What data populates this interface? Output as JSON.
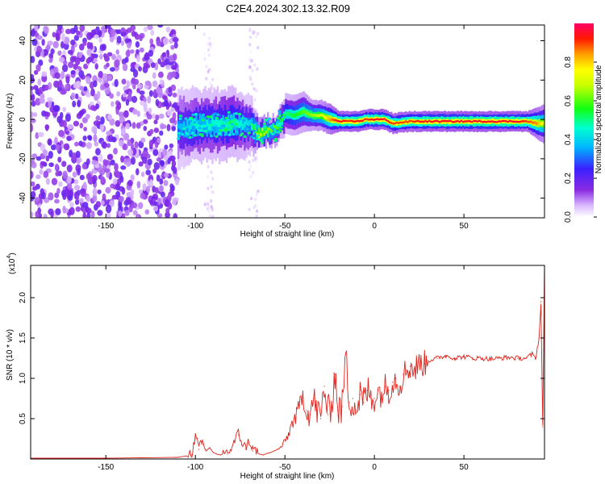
{
  "figure": {
    "title": "C2E4.2024.302.13.32.R09"
  },
  "colorbar": {
    "label": "Normalized spectral amplitude",
    "ticks": [
      0.0,
      0.2,
      0.4,
      0.6,
      0.8
    ],
    "tick_labels": [
      "0.0",
      "0.2",
      "0.4",
      "0.6",
      "0.8"
    ],
    "range": [
      0,
      1
    ]
  },
  "chart_data": [
    {
      "type": "heatmap",
      "title": "",
      "xlabel": "Height of straight line (km)",
      "ylabel": "Frequency (Hz)",
      "xlim": [
        -192,
        95
      ],
      "ylim": [
        -50,
        48
      ],
      "xticks": [
        -150,
        -100,
        -50,
        0,
        50
      ],
      "xtick_labels": [
        "-150",
        "-100",
        "-50",
        "0",
        "50"
      ],
      "yticks": [
        -40,
        -20,
        0,
        20,
        40
      ],
      "ytick_labels": [
        "-40",
        "-20",
        "0",
        "20",
        "40"
      ],
      "regions": [
        {
          "x": [
            -192,
            -110
          ],
          "freq": [
            -50,
            48
          ],
          "amplitude": [
            0.05,
            0.2
          ],
          "pattern": "scattered-noise"
        },
        {
          "x": [
            -95,
            -90
          ],
          "freq": [
            -50,
            48
          ],
          "amplitude": [
            0.0,
            0.08
          ],
          "pattern": "faint-columns"
        },
        {
          "x": [
            -70,
            -65
          ],
          "freq": [
            -50,
            48
          ],
          "amplitude": [
            0.0,
            0.08
          ],
          "pattern": "faint-columns"
        }
      ],
      "ridge": {
        "x": [
          -110,
          -100,
          -90,
          -80,
          -70,
          -65,
          -60,
          -55,
          -50,
          -45,
          -40,
          -35,
          -30,
          -25,
          -20,
          -15,
          -10,
          -5,
          0,
          5,
          10,
          20,
          30,
          40,
          50,
          60,
          70,
          80,
          85,
          90,
          95
        ],
        "freq": [
          -4,
          -3,
          -3,
          -2,
          -3,
          -7,
          -6,
          -5,
          3,
          2,
          4,
          2,
          2,
          0,
          -1,
          -1,
          -1,
          0,
          0,
          0,
          -2,
          -1,
          -1,
          -1,
          -1,
          -1,
          -1,
          -1,
          -1,
          -2,
          -2
        ],
        "amplitude": [
          0.35,
          0.45,
          0.45,
          0.5,
          0.4,
          0.75,
          0.65,
          0.6,
          0.5,
          0.55,
          0.6,
          0.65,
          0.7,
          0.85,
          0.95,
          0.9,
          0.95,
          0.9,
          0.95,
          0.95,
          0.9,
          0.9,
          0.95,
          0.95,
          0.95,
          0.95,
          0.95,
          0.95,
          0.9,
          0.85,
          0.7
        ],
        "halfwidth": [
          8,
          7,
          7,
          7,
          6,
          3,
          3,
          3,
          4,
          4,
          4,
          3,
          3,
          3,
          2,
          2,
          2,
          2,
          2,
          2,
          2,
          2,
          2,
          2,
          2,
          2,
          2,
          2,
          2,
          3,
          4
        ]
      }
    },
    {
      "type": "line",
      "title": "",
      "xlabel": "Height of straight line (km)",
      "ylabel": "SNR (10 * v/v)",
      "y_multiplier": "(x10",
      "y_multiplier_exp": "4",
      "xlim": [
        -192,
        95
      ],
      "ylim": [
        0,
        2.4
      ],
      "xticks": [
        -150,
        -100,
        -50,
        0,
        50
      ],
      "xtick_labels": [
        "-150",
        "-100",
        "-50",
        "0",
        "50"
      ],
      "yticks": [
        0.5,
        1.0,
        1.5,
        2.0
      ],
      "ytick_labels": [
        "0.5",
        "1.0",
        "1.5",
        "2.0"
      ],
      "series": [
        {
          "color": "#e0231c",
          "x": [
            -192,
            -150,
            -110,
            -102,
            -100,
            -98,
            -96,
            -94,
            -92,
            -90,
            -88,
            -86,
            -84,
            -82,
            -80,
            -78,
            -76,
            -74,
            -72,
            -70,
            -68,
            -66,
            -64,
            -62,
            -60,
            -58,
            -56,
            -54,
            -52,
            -50,
            -48,
            -46,
            -44,
            -42,
            -40,
            -38,
            -36,
            -34,
            -32,
            -30,
            -28,
            -26,
            -24,
            -22,
            -20,
            -18,
            -16,
            -14,
            -12,
            -10,
            -8,
            -6,
            -4,
            -2,
            0,
            2,
            4,
            6,
            8,
            10,
            12,
            14,
            16,
            18,
            20,
            22,
            24,
            26,
            28,
            30,
            35,
            40,
            45,
            50,
            55,
            60,
            65,
            70,
            75,
            80,
            85,
            88,
            90,
            92,
            93,
            94,
            95
          ],
          "values": [
            0.01,
            0.01,
            0.02,
            0.05,
            0.25,
            0.12,
            0.18,
            0.1,
            0.14,
            0.08,
            0.06,
            0.05,
            0.07,
            0.06,
            0.1,
            0.2,
            0.3,
            0.18,
            0.12,
            0.2,
            0.1,
            0.08,
            0.06,
            0.05,
            0.07,
            0.08,
            0.1,
            0.12,
            0.15,
            0.22,
            0.3,
            0.45,
            0.5,
            0.65,
            0.8,
            0.6,
            0.55,
            0.75,
            0.6,
            0.5,
            0.9,
            0.55,
            0.7,
            1.05,
            0.6,
            0.65,
            1.3,
            0.7,
            0.75,
            0.6,
            0.8,
            0.7,
            0.85,
            0.75,
            0.75,
            0.85,
            0.8,
            0.9,
            0.85,
            0.95,
            1.0,
            0.9,
            1.05,
            1.1,
            1.15,
            1.1,
            1.15,
            1.2,
            1.18,
            1.22,
            1.25,
            1.28,
            1.25,
            1.27,
            1.25,
            1.25,
            1.24,
            1.25,
            1.26,
            1.25,
            1.25,
            1.3,
            1.25,
            1.5,
            1.95,
            0.4,
            2.4
          ]
        }
      ]
    }
  ]
}
